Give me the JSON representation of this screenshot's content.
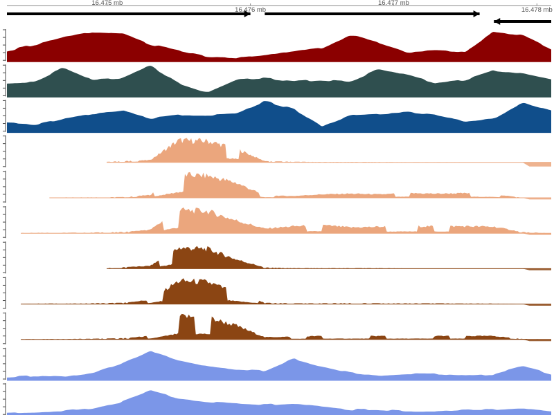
{
  "chart_data": {
    "type": "area",
    "x_unit": "mb",
    "axis": {
      "ticks": [
        {
          "value": 16.475,
          "label": "16.475 mb",
          "row": 0
        },
        {
          "value": 16.476,
          "label": "16.476 mb",
          "row": 1
        },
        {
          "value": 16.477,
          "label": "16.477 mb",
          "row": 0
        },
        {
          "value": 16.478,
          "label": "16.478 mb",
          "row": 1
        }
      ]
    },
    "x": [
      16.4743,
      16.4745,
      16.4747,
      16.4749,
      16.4751,
      16.4753,
      16.4755,
      16.4757,
      16.4759,
      16.4761,
      16.4763,
      16.4765,
      16.4767,
      16.4769,
      16.4771,
      16.4773,
      16.4775,
      16.4777,
      16.4779,
      16.4781
    ],
    "genes": [
      {
        "strand": "+",
        "start": 16.4743,
        "end": 16.476
      },
      {
        "strand": "+",
        "start": 16.4761,
        "end": 16.4776
      },
      {
        "strand": "-",
        "start": 16.4777,
        "end": 16.4781
      }
    ],
    "series": [
      {
        "color": "#8b0000",
        "style": "smooth",
        "values": [
          0.35,
          0.55,
          0.8,
          0.95,
          0.9,
          0.55,
          0.35,
          0.15,
          0.12,
          0.2,
          0.35,
          0.45,
          0.85,
          0.6,
          0.3,
          0.35,
          0.3,
          0.95,
          0.85,
          0.4
        ]
      },
      {
        "color": "#2f4f4f",
        "style": "smooth",
        "values": [
          0.45,
          0.5,
          0.95,
          0.55,
          0.6,
          1.0,
          0.45,
          0.15,
          0.55,
          0.6,
          0.5,
          0.55,
          0.5,
          0.9,
          0.7,
          0.45,
          0.55,
          0.85,
          0.75,
          0.55
        ]
      },
      {
        "color": "#104e8b",
        "style": "smooth",
        "values": [
          0.3,
          0.25,
          0.45,
          0.6,
          0.7,
          0.45,
          0.55,
          0.55,
          0.6,
          1.0,
          0.75,
          0.2,
          0.55,
          0.6,
          0.65,
          0.55,
          0.35,
          0.45,
          0.95,
          0.7
        ]
      },
      {
        "color": "#eba67d",
        "style": "coverage",
        "neg": 0.25,
        "values": [
          0,
          0,
          0,
          0,
          0.05,
          0.1,
          0.95,
          0.92,
          0.6,
          0.05,
          0.03,
          0.02,
          0.02,
          0.02,
          0.01,
          0.01,
          0.01,
          0.0,
          0.0,
          0.0
        ]
      },
      {
        "color": "#eba67d",
        "style": "coverage",
        "neg": 0.1,
        "values": [
          0,
          0,
          0.02,
          0.02,
          0.03,
          0.12,
          1.0,
          0.95,
          0.65,
          0.1,
          0.08,
          0.15,
          0.18,
          0.15,
          0.2,
          0.18,
          0.2,
          0.15,
          0.0,
          0.0
        ]
      },
      {
        "color": "#eba67d",
        "style": "coverage",
        "neg": 0.1,
        "values": [
          0,
          0.02,
          0.02,
          0.03,
          0.05,
          0.15,
          1.0,
          0.95,
          0.55,
          0.2,
          0.3,
          0.35,
          0.25,
          0.28,
          0.3,
          0.3,
          0.3,
          0.28,
          0.05,
          0.0
        ]
      },
      {
        "color": "#8b4513",
        "style": "coverage",
        "neg": 0.1,
        "values": [
          0,
          0,
          0,
          0,
          0.05,
          0.12,
          0.9,
          0.85,
          0.4,
          0.05,
          0.02,
          0.02,
          0.02,
          0.02,
          0.01,
          0.01,
          0.01,
          0.0,
          0.0,
          0.0
        ]
      },
      {
        "color": "#8b4513",
        "style": "coverage",
        "neg": 0.1,
        "values": [
          0,
          0.02,
          0.02,
          0.03,
          0.05,
          0.18,
          1.0,
          0.95,
          0.5,
          0.05,
          0.03,
          0.03,
          0.04,
          0.03,
          0.03,
          0.03,
          0.02,
          0.02,
          0.0,
          0.0
        ]
      },
      {
        "color": "#8b4513",
        "style": "coverage",
        "neg": 0.1,
        "values": [
          0,
          0.02,
          0.02,
          0.03,
          0.05,
          0.15,
          1.0,
          0.95,
          0.6,
          0.1,
          0.12,
          0.15,
          0.15,
          0.15,
          0.15,
          0.15,
          0.15,
          0.15,
          0.02,
          0.0
        ]
      },
      {
        "color": "#7b96e8",
        "style": "smooth",
        "values": [
          0.1,
          0.15,
          0.12,
          0.25,
          0.55,
          0.95,
          0.65,
          0.45,
          0.35,
          0.3,
          0.7,
          0.45,
          0.25,
          0.15,
          0.2,
          0.2,
          0.15,
          0.2,
          0.45,
          0.2
        ]
      },
      {
        "color": "#7b96e8",
        "style": "smooth",
        "values": [
          0.1,
          0.12,
          0.15,
          0.25,
          0.45,
          0.8,
          0.55,
          0.45,
          0.4,
          0.35,
          0.4,
          0.3,
          0.2,
          0.2,
          0.15,
          0.15,
          0.2,
          0.2,
          0.25,
          0.15
        ]
      }
    ]
  }
}
